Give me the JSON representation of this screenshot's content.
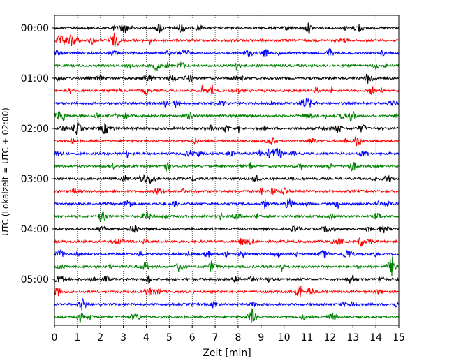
{
  "chart_data": {
    "type": "line",
    "title": "",
    "xlabel": "Zeit  [min]",
    "ylabel": "UTC (Lokalzeit = UTC + 02:00)",
    "x_ticks": [
      "0",
      "1",
      "2",
      "3",
      "4",
      "5",
      "6",
      "7",
      "8",
      "9",
      "10",
      "11",
      "12",
      "13",
      "14",
      "15"
    ],
    "y_ticks": [
      "00:00",
      "01:00",
      "02:00",
      "03:00",
      "04:00",
      "05:00"
    ],
    "xlim": [
      0,
      15
    ],
    "grid": "vertical dotted at each minute",
    "trace_interval_minutes": 15,
    "traces_start": "00:00",
    "traces_count": 24,
    "trace_color_cycle": [
      "#000000",
      "#ff0000",
      "#0000ff",
      "#008000"
    ]
  }
}
